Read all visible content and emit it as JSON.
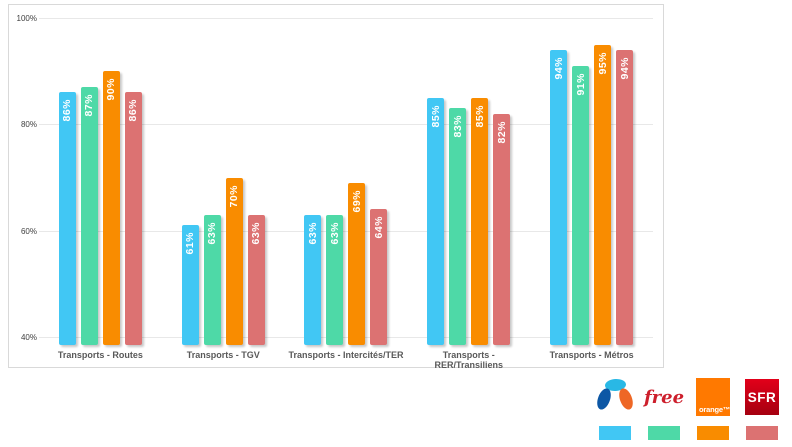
{
  "chart_data": {
    "type": "bar",
    "title": "",
    "categories": [
      "Transports - Routes",
      "Transports - TGV",
      "Transports - Intercités/TER",
      "Transports - RER/Transiliens",
      "Transports - Métros"
    ],
    "series": [
      {
        "name": "bouygues-telecom",
        "color": "#41C7F4",
        "values": [
          86,
          61,
          63,
          85,
          94
        ]
      },
      {
        "name": "free",
        "color": "#4ED9A7",
        "values": [
          87,
          63,
          63,
          83,
          91
        ]
      },
      {
        "name": "orange",
        "color": "#F98C00",
        "values": [
          90,
          70,
          69,
          85,
          95
        ]
      },
      {
        "name": "sfr",
        "color": "#DC7272",
        "values": [
          86,
          63,
          64,
          82,
          94
        ]
      }
    ],
    "ylim": [
      40,
      100
    ],
    "yticks": [
      {
        "label": "100%",
        "value": 100
      },
      {
        "label": "80%",
        "value": 80
      },
      {
        "label": "60%",
        "value": 60
      },
      {
        "label": "40%",
        "value": 40
      }
    ],
    "grid": true,
    "value_labels": true,
    "value_label_suffix": "%",
    "legend_position": "bottom-right-outside"
  },
  "legend": {
    "items": [
      {
        "id": "bouygues",
        "logo": "bouygues-telecom-logo",
        "logo_text": "",
        "logo_colors": [
          "#29B8E5",
          "#0C57A5",
          "#EE6725"
        ],
        "swatch_color": "#41C7F4"
      },
      {
        "id": "free",
        "logo": "free-logo",
        "logo_text": "free",
        "text_color": "#CD1F2C",
        "swatch_color": "#4ED9A7"
      },
      {
        "id": "orange",
        "logo": "orange-logo",
        "logo_text": "orange™",
        "bg_color": "#FF7900",
        "swatch_color": "#F98C00"
      },
      {
        "id": "sfr",
        "logo": "sfr-logo",
        "logo_text": "SFR",
        "bg_gradient": [
          "#E2001A",
          "#A50010"
        ],
        "swatch_color": "#DC7272"
      }
    ]
  },
  "styles": {
    "gridline_color": "#E8E8E8",
    "axis_text_color": "#595959",
    "chart_border_color": "#D9D9D9"
  }
}
